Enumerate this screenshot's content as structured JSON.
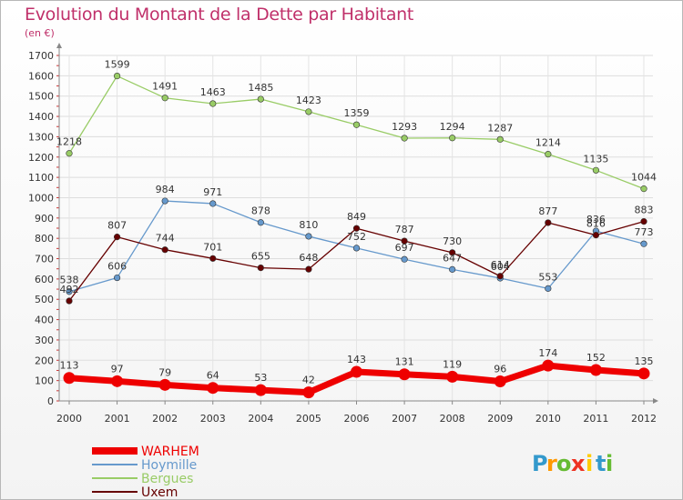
{
  "chart_data": {
    "type": "line",
    "title": "Evolution du Montant de la Dette par Habitant",
    "subtitle": "(en €)",
    "xlabel": "",
    "ylabel": "",
    "ylim": [
      0,
      1700
    ],
    "yticks": [
      0,
      100,
      200,
      300,
      400,
      500,
      600,
      700,
      800,
      900,
      1000,
      1100,
      1200,
      1300,
      1400,
      1500,
      1600,
      1700
    ],
    "x": [
      "2000",
      "2001",
      "2002",
      "2003",
      "2004",
      "2005",
      "2006",
      "2007",
      "2008",
      "2009",
      "2010",
      "2011",
      "2012"
    ],
    "grid": true,
    "legend": "bottom-left",
    "series": [
      {
        "name": "WARHEM",
        "color": "#ee0000",
        "values": [
          113,
          97,
          79,
          64,
          53,
          42,
          143,
          131,
          119,
          96,
          174,
          152,
          135
        ]
      },
      {
        "name": "Hoymille",
        "color": "#6699cc",
        "values": [
          538,
          606,
          984,
          971,
          878,
          810,
          752,
          697,
          647,
          604,
          553,
          836,
          773
        ]
      },
      {
        "name": "Bergues",
        "color": "#99cc66",
        "values": [
          1218,
          1599,
          1491,
          1463,
          1485,
          1423,
          1359,
          1293,
          1294,
          1287,
          1214,
          1135,
          1044
        ]
      },
      {
        "name": "Uxem",
        "color": "#660000",
        "values": [
          492,
          807,
          744,
          701,
          655,
          648,
          849,
          787,
          730,
          614,
          877,
          816,
          883
        ]
      }
    ]
  },
  "logo": {
    "text": "Proxiti",
    "letters": [
      "P",
      "r",
      "o",
      "x",
      "i",
      "t",
      "i"
    ]
  }
}
